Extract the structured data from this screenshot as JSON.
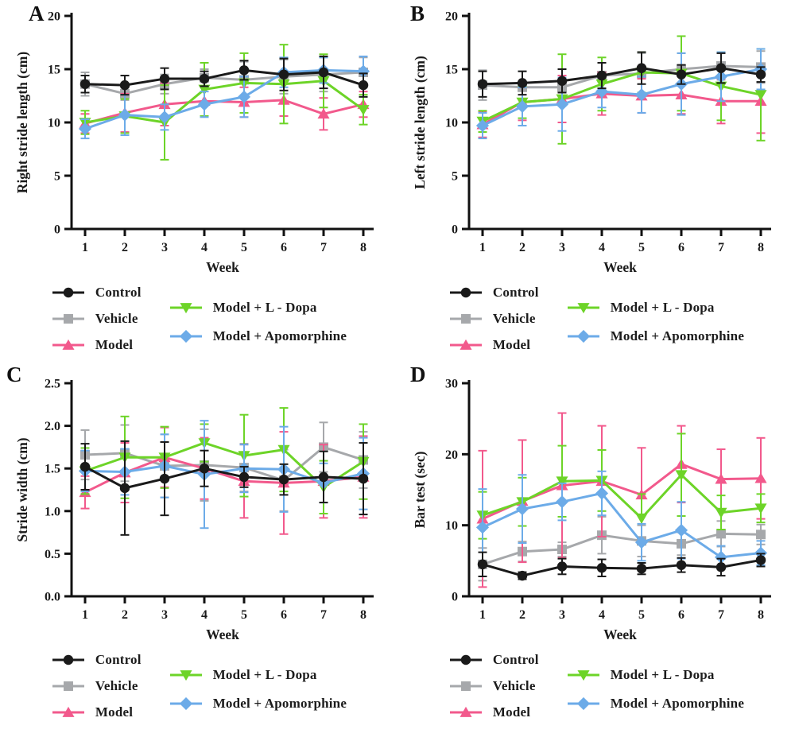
{
  "figure": {
    "panels": [
      "A",
      "B",
      "C",
      "D"
    ],
    "background": "#ffffff",
    "axis_color": "#111111"
  },
  "legend": {
    "labels": [
      "Control",
      "Vehicle",
      "Model",
      "Model + L - Dopa",
      "Model + Apomorphine"
    ]
  },
  "series_styles": [
    {
      "name": "Control",
      "color": "#1a1a1a",
      "marker": "circle"
    },
    {
      "name": "Vehicle",
      "color": "#a6a8ab",
      "marker": "square"
    },
    {
      "name": "Model",
      "color": "#f2598c",
      "marker": "triangle-up"
    },
    {
      "name": "Model + L - Dopa",
      "color": "#6dd428",
      "marker": "triangle-down"
    },
    {
      "name": "Model + Apomorphine",
      "color": "#6cabe8",
      "marker": "diamond"
    }
  ],
  "chart_data": [
    {
      "panel": "A",
      "type": "line",
      "xlabel": "Week",
      "ylabel": "Right stride length (cm)",
      "x": [
        1,
        2,
        3,
        4,
        5,
        6,
        7,
        8
      ],
      "ylim": [
        0,
        20
      ],
      "yticks": [
        0,
        5,
        10,
        15,
        20
      ],
      "ytick_labels": [
        "0",
        "5",
        "10",
        "15",
        "20"
      ],
      "series": [
        {
          "name": "Control",
          "values": [
            13.6,
            13.5,
            14.1,
            14.1,
            14.9,
            14.5,
            14.7,
            13.5
          ],
          "errors": [
            0.8,
            0.9,
            1.0,
            0.7,
            0.9,
            1.5,
            1.5,
            1.1
          ]
        },
        {
          "name": "Vehicle",
          "values": [
            13.6,
            12.7,
            13.6,
            14.2,
            14.0,
            14.3,
            14.5,
            14.7
          ],
          "errors": [
            1.1,
            0.6,
            0.9,
            0.8,
            1.7,
            1.6,
            1.6,
            1.4
          ]
        },
        {
          "name": "Model",
          "values": [
            9.9,
            10.9,
            11.7,
            12.0,
            11.9,
            12.1,
            10.8,
            11.7
          ],
          "errors": [
            0.9,
            1.8,
            2.0,
            1.4,
            1.4,
            1.5,
            1.5,
            1.2
          ]
        },
        {
          "name": "Model + L - Dopa",
          "values": [
            10.0,
            10.6,
            10.0,
            13.1,
            13.7,
            13.6,
            13.9,
            11.2
          ],
          "errors": [
            1.1,
            1.6,
            3.5,
            2.5,
            2.8,
            3.7,
            2.5,
            1.4
          ]
        },
        {
          "name": "Model + Apomorphine",
          "values": [
            9.4,
            10.7,
            10.5,
            11.7,
            12.4,
            14.7,
            14.9,
            14.8
          ],
          "errors": [
            0.9,
            1.9,
            1.2,
            1.2,
            1.9,
            1.4,
            1.2,
            1.4
          ]
        }
      ]
    },
    {
      "panel": "B",
      "type": "line",
      "xlabel": "Week",
      "ylabel": "Left stride length (cm)",
      "x": [
        1,
        2,
        3,
        4,
        5,
        6,
        7,
        8
      ],
      "ylim": [
        0,
        20
      ],
      "yticks": [
        0,
        5,
        10,
        15,
        20
      ],
      "ytick_labels": [
        "0",
        "5",
        "10",
        "15",
        "20"
      ],
      "series": [
        {
          "name": "Control",
          "values": [
            13.6,
            13.7,
            13.9,
            14.4,
            15.1,
            14.5,
            15.1,
            14.5
          ],
          "errors": [
            1.2,
            1.1,
            1.1,
            1.2,
            1.5,
            0.9,
            1.4,
            0.7
          ]
        },
        {
          "name": "Vehicle",
          "values": [
            13.5,
            13.3,
            13.3,
            14.4,
            14.6,
            15.0,
            15.3,
            15.2
          ],
          "errors": [
            1.4,
            1.5,
            1.7,
            1.2,
            1.9,
            1.5,
            1.3,
            1.5
          ]
        },
        {
          "name": "Model",
          "values": [
            9.8,
            11.9,
            12.2,
            12.7,
            12.5,
            12.6,
            12.0,
            12.0
          ],
          "errors": [
            1.2,
            1.7,
            2.2,
            2.0,
            1.6,
            1.8,
            2.1,
            3.0
          ]
        },
        {
          "name": "Model + L - Dopa",
          "values": [
            10.1,
            11.9,
            12.2,
            13.6,
            14.7,
            14.6,
            13.4,
            12.6
          ],
          "errors": [
            1.0,
            1.5,
            4.2,
            2.5,
            1.9,
            3.5,
            3.2,
            4.3
          ]
        },
        {
          "name": "Model + Apomorphine",
          "values": [
            9.7,
            11.5,
            11.7,
            12.9,
            12.6,
            13.6,
            14.3,
            15.0
          ],
          "errors": [
            1.2,
            1.8,
            2.5,
            1.5,
            1.7,
            2.9,
            2.3,
            1.9
          ]
        }
      ]
    },
    {
      "panel": "C",
      "type": "line",
      "xlabel": "Week",
      "ylabel": "Stride width (cm)",
      "x": [
        1,
        2,
        3,
        4,
        5,
        6,
        7,
        8
      ],
      "ylim": [
        0,
        2.5
      ],
      "yticks": [
        0,
        0.5,
        1.0,
        1.5,
        2.0,
        2.5
      ],
      "ytick_labels": [
        "0.0",
        "0.5",
        "1.0",
        "1.5",
        "2.0",
        "2.5"
      ],
      "series": [
        {
          "name": "Control",
          "values": [
            1.52,
            1.27,
            1.38,
            1.5,
            1.4,
            1.37,
            1.4,
            1.38
          ],
          "errors": [
            0.27,
            0.55,
            0.43,
            0.21,
            0.12,
            0.18,
            0.3,
            0.42
          ]
        },
        {
          "name": "Vehicle",
          "values": [
            1.66,
            1.68,
            1.53,
            1.54,
            1.51,
            1.36,
            1.75,
            1.6
          ],
          "errors": [
            0.29,
            0.33,
            0.37,
            0.42,
            0.28,
            0.36,
            0.29,
            0.33
          ]
        },
        {
          "name": "Model",
          "values": [
            1.22,
            1.45,
            1.63,
            1.5,
            1.35,
            1.33,
            1.35,
            1.4
          ],
          "errors": [
            0.19,
            0.35,
            0.35,
            0.36,
            0.43,
            0.6,
            0.43,
            0.48
          ]
        },
        {
          "name": "Model + L - Dopa",
          "values": [
            1.47,
            1.63,
            1.63,
            1.8,
            1.65,
            1.72,
            1.28,
            1.58
          ],
          "errors": [
            0.27,
            0.48,
            0.36,
            0.22,
            0.48,
            0.49,
            0.31,
            0.44
          ]
        },
        {
          "name": "Model + Apomorphine",
          "values": [
            1.47,
            1.46,
            1.53,
            1.43,
            1.5,
            1.49,
            1.33,
            1.44
          ],
          "errors": [
            0.24,
            0.27,
            0.37,
            0.63,
            0.28,
            0.5,
            0.23,
            0.42
          ]
        }
      ]
    },
    {
      "panel": "D",
      "type": "line",
      "xlabel": "Week",
      "ylabel": "Bar test (sec)",
      "x": [
        1,
        2,
        3,
        4,
        5,
        6,
        7,
        8
      ],
      "ylim": [
        0,
        30
      ],
      "yticks": [
        0,
        10,
        20,
        30
      ],
      "ytick_labels": [
        "0",
        "10",
        "20",
        "30"
      ],
      "series": [
        {
          "name": "Control",
          "values": [
            4.5,
            2.9,
            4.2,
            4.0,
            3.9,
            4.4,
            4.1,
            5.1
          ],
          "errors": [
            1.7,
            0.5,
            1.1,
            1.2,
            0.8,
            1.0,
            1.2,
            0.9
          ]
        },
        {
          "name": "Vehicle",
          "values": [
            4.5,
            6.3,
            6.6,
            8.6,
            7.8,
            7.4,
            8.8,
            8.7
          ],
          "errors": [
            2.3,
            1.4,
            1.0,
            2.6,
            2.2,
            1.6,
            1.8,
            1.4
          ]
        },
        {
          "name": "Model",
          "values": [
            10.9,
            13.4,
            15.6,
            16.2,
            14.3,
            18.6,
            16.5,
            16.6
          ],
          "errors": [
            9.6,
            8.6,
            10.2,
            7.8,
            6.6,
            5.4,
            4.2,
            5.7
          ]
        },
        {
          "name": "Model + L - Dopa",
          "values": [
            11.4,
            13.3,
            16.2,
            16.3,
            11.0,
            17.1,
            11.8,
            12.4
          ],
          "errors": [
            3.3,
            3.4,
            5.0,
            4.3,
            3.4,
            5.8,
            2.4,
            2.0
          ]
        },
        {
          "name": "Model + Apomorphine",
          "values": [
            9.7,
            12.3,
            13.3,
            14.5,
            7.6,
            9.3,
            5.5,
            6.1
          ],
          "errors": [
            5.4,
            4.8,
            2.6,
            3.1,
            2.6,
            4.0,
            1.6,
            1.7
          ]
        }
      ]
    }
  ]
}
